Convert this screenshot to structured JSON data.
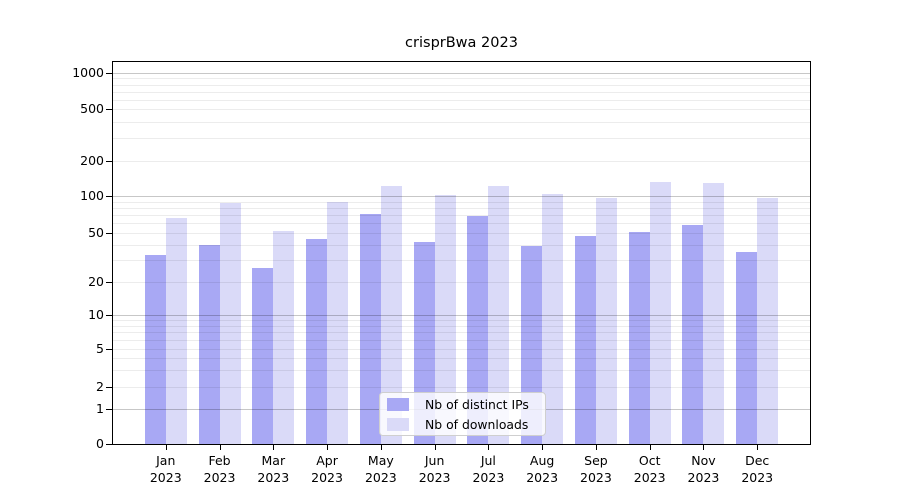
{
  "chart_data": {
    "type": "bar",
    "title": "crisprBwa 2023",
    "x_categories": [
      "Jan",
      "Feb",
      "Mar",
      "Apr",
      "May",
      "Jun",
      "Jul",
      "Aug",
      "Sep",
      "Oct",
      "Nov",
      "Dec"
    ],
    "x_year": "2023",
    "series": [
      {
        "name": "Nb of distinct IPs",
        "color": "#a8a8f4",
        "values": [
          33,
          40,
          26,
          45,
          71,
          42,
          69,
          39,
          47,
          51,
          58,
          35
        ]
      },
      {
        "name": "Nb of downloads",
        "color": "#dadaf8",
        "values": [
          66,
          88,
          52,
          89,
          121,
          101,
          122,
          104,
          97,
          132,
          129,
          97
        ]
      }
    ],
    "y_ticks": [
      0,
      1,
      2,
      5,
      10,
      20,
      50,
      100,
      200,
      500,
      1000
    ],
    "y_scale": "symlog",
    "ylim": [
      0,
      1250
    ],
    "xlabel": "",
    "ylabel": "",
    "grid": true,
    "legend_position": "lower center"
  }
}
